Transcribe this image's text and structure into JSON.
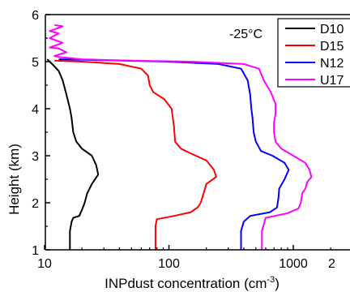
{
  "chart_data": {
    "type": "line",
    "title": "",
    "annotation": "-25°C",
    "xlabel": "INPdust concentration (cm",
    "xlabel_sup": "-3",
    "xlabel_end": ")",
    "ylabel": "Height (km)",
    "xscale": "log",
    "xlim": [
      10,
      2000
    ],
    "ylim": [
      1,
      6
    ],
    "x_ticks": [
      10,
      100,
      1000
    ],
    "x_tick_labels": [
      "10",
      "100",
      "1000"
    ],
    "y_ticks": [
      1,
      2,
      3,
      4,
      5,
      6
    ],
    "y_tick_labels": [
      "1",
      "2",
      "3",
      "4",
      "5",
      "6"
    ],
    "grid": false,
    "legend_position": "top-right",
    "series": [
      {
        "name": "D10",
        "color": "#000000",
        "points": [
          [
            16,
            1.0
          ],
          [
            16,
            1.4
          ],
          [
            16.5,
            1.6
          ],
          [
            17,
            1.68
          ],
          [
            19,
            1.72
          ],
          [
            20,
            1.85
          ],
          [
            21,
            2.0
          ],
          [
            22,
            2.2
          ],
          [
            24,
            2.4
          ],
          [
            27,
            2.6
          ],
          [
            26,
            2.8
          ],
          [
            24,
            3.0
          ],
          [
            20,
            3.15
          ],
          [
            18,
            3.3
          ],
          [
            17,
            3.5
          ],
          [
            16.5,
            3.8
          ],
          [
            16,
            4.0
          ],
          [
            15,
            4.3
          ],
          [
            14,
            4.6
          ],
          [
            13,
            4.8
          ],
          [
            12,
            4.9
          ],
          [
            11,
            5.0
          ],
          [
            10.5,
            5.05
          ]
        ]
      },
      {
        "name": "D15",
        "color": "#ff0000",
        "points": [
          [
            78,
            1.0
          ],
          [
            78,
            1.5
          ],
          [
            80,
            1.65
          ],
          [
            110,
            1.72
          ],
          [
            150,
            1.8
          ],
          [
            170,
            1.9
          ],
          [
            180,
            2.0
          ],
          [
            190,
            2.2
          ],
          [
            200,
            2.4
          ],
          [
            240,
            2.55
          ],
          [
            230,
            2.7
          ],
          [
            200,
            2.9
          ],
          [
            150,
            3.05
          ],
          [
            125,
            3.15
          ],
          [
            112,
            3.3
          ],
          [
            110,
            3.6
          ],
          [
            105,
            4.0
          ],
          [
            92,
            4.2
          ],
          [
            75,
            4.35
          ],
          [
            70,
            4.5
          ],
          [
            68,
            4.7
          ],
          [
            60,
            4.85
          ],
          [
            40,
            4.95
          ],
          [
            20,
            5.0
          ],
          [
            12,
            5.02
          ]
        ]
      },
      {
        "name": "N12",
        "color": "#0000ff",
        "points": [
          [
            380,
            1.0
          ],
          [
            380,
            1.4
          ],
          [
            400,
            1.6
          ],
          [
            450,
            1.72
          ],
          [
            650,
            1.8
          ],
          [
            740,
            1.9
          ],
          [
            760,
            2.1
          ],
          [
            770,
            2.3
          ],
          [
            850,
            2.5
          ],
          [
            920,
            2.7
          ],
          [
            850,
            2.85
          ],
          [
            680,
            3.0
          ],
          [
            550,
            3.1
          ],
          [
            500,
            3.3
          ],
          [
            480,
            3.5
          ],
          [
            470,
            3.8
          ],
          [
            460,
            4.0
          ],
          [
            450,
            4.3
          ],
          [
            430,
            4.6
          ],
          [
            400,
            4.75
          ],
          [
            380,
            4.85
          ],
          [
            250,
            4.95
          ],
          [
            100,
            5.0
          ],
          [
            30,
            5.03
          ],
          [
            13,
            5.05
          ]
        ]
      },
      {
        "name": "U17",
        "color": "#ff00ff",
        "points": [
          [
            560,
            1.0
          ],
          [
            560,
            1.4
          ],
          [
            580,
            1.55
          ],
          [
            600,
            1.68
          ],
          [
            900,
            1.78
          ],
          [
            1100,
            1.88
          ],
          [
            1150,
            2.0
          ],
          [
            1180,
            2.2
          ],
          [
            1250,
            2.3
          ],
          [
            1300,
            2.45
          ],
          [
            1400,
            2.55
          ],
          [
            1350,
            2.7
          ],
          [
            1250,
            2.85
          ],
          [
            1000,
            3.0
          ],
          [
            800,
            3.15
          ],
          [
            720,
            3.3
          ],
          [
            700,
            3.5
          ],
          [
            700,
            3.7
          ],
          [
            720,
            3.9
          ],
          [
            720,
            4.1
          ],
          [
            660,
            4.35
          ],
          [
            580,
            4.6
          ],
          [
            530,
            4.85
          ],
          [
            400,
            4.95
          ],
          [
            150,
            5.0
          ],
          [
            50,
            5.02
          ],
          [
            20,
            5.05
          ],
          [
            13,
            5.1
          ],
          [
            12,
            5.12
          ],
          [
            15,
            5.2
          ],
          [
            13,
            5.28
          ],
          [
            11,
            5.3
          ],
          [
            14,
            5.4
          ],
          [
            11,
            5.5
          ],
          [
            13,
            5.6
          ],
          [
            11,
            5.65
          ],
          [
            14,
            5.75
          ],
          [
            12,
            5.78
          ]
        ]
      }
    ]
  }
}
